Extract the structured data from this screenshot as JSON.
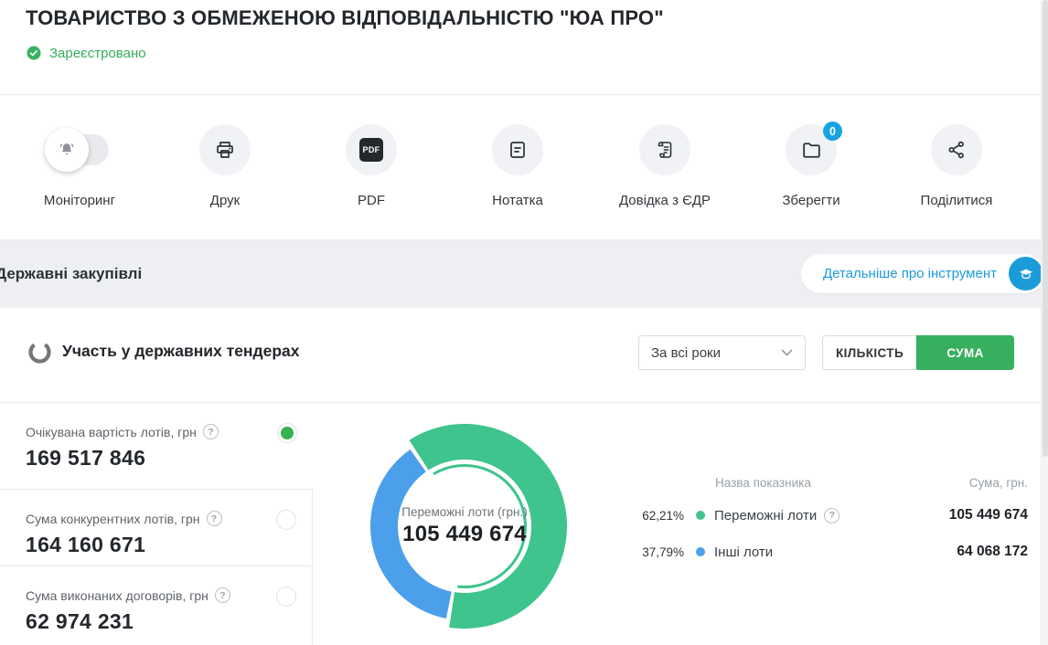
{
  "header": {
    "title": "ТОВАРИСТВО З ОБМЕЖЕНОЮ ВІДПОВІДАЛЬНІСТЮ \"ЮА ПРО\"",
    "status": {
      "label": "Зареєстровано",
      "color": "#38b260"
    }
  },
  "toolbar": {
    "items": [
      {
        "id": "monitoring",
        "label": "Моніторинг",
        "icon": "bell-toggle-icon"
      },
      {
        "id": "print",
        "label": "Друк",
        "icon": "printer-icon"
      },
      {
        "id": "pdf",
        "label": "PDF",
        "icon": "pdf-file-icon",
        "icon_text": "PDF"
      },
      {
        "id": "note",
        "label": "Нотатка",
        "icon": "note-icon"
      },
      {
        "id": "edr",
        "label": "Довідка з ЄДР",
        "icon": "scroll-icon"
      },
      {
        "id": "save",
        "label": "Зберегти",
        "icon": "folder-icon",
        "badge": "0"
      },
      {
        "id": "share",
        "label": "Поділитися",
        "icon": "share-icon"
      }
    ]
  },
  "section_band": {
    "title": "Державні закупівлі",
    "link_label": "Детальніше про інструмент"
  },
  "tenders": {
    "title": "Участь у державних тендерах",
    "period_filter": {
      "value": "За всі роки"
    },
    "mode_toggle": {
      "count_label": "КІЛЬКІСТЬ",
      "sum_label": "СУМА",
      "active": "СУМА"
    },
    "stats": [
      {
        "label": "Очікувана вартість лотів, грн",
        "value": "169 517 846",
        "selected": true
      },
      {
        "label": "Сума конкурентних лотів, грн",
        "value": "164 160 671",
        "selected": false
      },
      {
        "label": "Сума виконаних договорів, грн",
        "value": "62 974 231",
        "selected": false
      }
    ],
    "table": {
      "col1": "Назва показника",
      "col2": "Сума, грн."
    }
  },
  "chart_data": {
    "type": "pie",
    "title": "Переможні лоти (грн.)",
    "center_label": "Переможні лоти (грн.)",
    "center_value": "105 449 674",
    "start_angle_deg": -34,
    "legend_position": "right",
    "series": [
      {
        "name": "Переможні лоти",
        "pct": "62,21%",
        "pct_num": 62.21,
        "value": "105 449 674",
        "value_num": 105449674,
        "color": "#3ec48c",
        "selected": true,
        "has_help": true
      },
      {
        "name": "Інші лоти",
        "pct": "37,79%",
        "pct_num": 37.79,
        "value": "64 068 172",
        "value_num": 64068172,
        "color": "#4c9fea",
        "selected": false,
        "has_help": false
      }
    ]
  },
  "icons": {
    "help": "?"
  },
  "colors": {
    "accent_green": "#36b05f",
    "chart_green": "#3ec48c",
    "chart_blue": "#4c9fea",
    "link_blue": "#1b9cd9",
    "badge_blue": "#17a3e1",
    "band_bg": "#edeff3"
  }
}
